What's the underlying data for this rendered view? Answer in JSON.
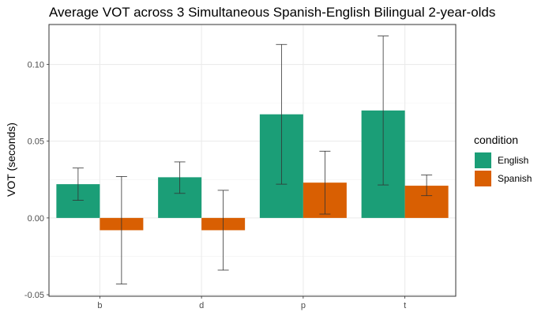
{
  "chart_data": {
    "type": "bar",
    "title": "Average VOT across 3 Simultaneous Spanish-English Bilingual 2-year-olds",
    "xlabel": "",
    "ylabel": "VOT (seconds)",
    "categories": [
      "b",
      "d",
      "p",
      "t"
    ],
    "ylim": [
      -0.051,
      0.126
    ],
    "yticks": [
      -0.05,
      0.0,
      0.05,
      0.1
    ],
    "ytick_labels": [
      "-0.05",
      "0.00",
      "0.05",
      "0.10"
    ],
    "grid": true,
    "legend": {
      "title": "condition",
      "position": "right"
    },
    "series": [
      {
        "name": "English",
        "color": "#1b9e77",
        "values": [
          0.022,
          0.0265,
          0.0675,
          0.07
        ],
        "error_low": [
          0.0115,
          0.016,
          0.022,
          0.0215
        ],
        "error_high": [
          0.0325,
          0.0365,
          0.113,
          0.1185
        ]
      },
      {
        "name": "Spanish",
        "color": "#d95f02",
        "values": [
          -0.008,
          -0.008,
          0.023,
          0.021
        ],
        "error_low": [
          -0.043,
          -0.034,
          0.0025,
          0.0145
        ],
        "error_high": [
          0.027,
          0.018,
          0.0435,
          0.028
        ]
      }
    ]
  }
}
